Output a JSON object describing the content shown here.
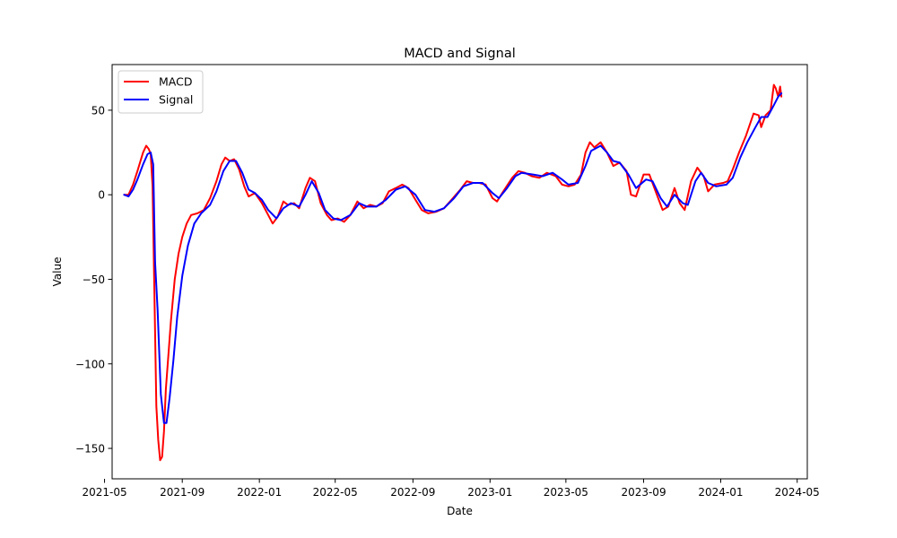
{
  "chart_data": {
    "type": "line",
    "title": "MACD and Signal",
    "xlabel": "Date",
    "ylabel": "Value",
    "xlim": [
      "2021-05-13",
      "2024-05-17"
    ],
    "ylim": [
      -168,
      77
    ],
    "x_ticks": [
      "2021-05",
      "2021-09",
      "2022-01",
      "2022-05",
      "2022-09",
      "2023-01",
      "2023-05",
      "2023-09",
      "2024-01",
      "2024-05"
    ],
    "y_ticks": [
      -150,
      -100,
      -50,
      0,
      50
    ],
    "y_tick_labels": [
      "−150",
      "−100",
      "−50",
      "0",
      "50"
    ],
    "legend": {
      "position": "upper-left",
      "entries": [
        "MACD",
        "Signal"
      ]
    },
    "grid": false,
    "series": [
      {
        "name": "MACD",
        "color": "#ff0000",
        "points": [
          [
            "2021-06-01",
            0
          ],
          [
            "2021-06-08",
            0
          ],
          [
            "2021-06-15",
            6
          ],
          [
            "2021-06-22",
            14
          ],
          [
            "2021-07-01",
            25
          ],
          [
            "2021-07-06",
            29
          ],
          [
            "2021-07-10",
            27
          ],
          [
            "2021-07-13",
            24
          ],
          [
            "2021-07-16",
            5
          ],
          [
            "2021-07-19",
            -60
          ],
          [
            "2021-07-22",
            -125
          ],
          [
            "2021-07-25",
            -145
          ],
          [
            "2021-07-28",
            -157
          ],
          [
            "2021-07-31",
            -155
          ],
          [
            "2021-08-03",
            -140
          ],
          [
            "2021-08-06",
            -115
          ],
          [
            "2021-08-10",
            -95
          ],
          [
            "2021-08-14",
            -75
          ],
          [
            "2021-08-20",
            -50
          ],
          [
            "2021-08-26",
            -35
          ],
          [
            "2021-09-01",
            -25
          ],
          [
            "2021-09-08",
            -17
          ],
          [
            "2021-09-15",
            -12
          ],
          [
            "2021-09-25",
            -11
          ],
          [
            "2021-10-05",
            -9
          ],
          [
            "2021-10-15",
            -2
          ],
          [
            "2021-10-25",
            8
          ],
          [
            "2021-11-02",
            18
          ],
          [
            "2021-11-08",
            22
          ],
          [
            "2021-11-15",
            20
          ],
          [
            "2021-11-22",
            21
          ],
          [
            "2021-11-30",
            15
          ],
          [
            "2021-12-08",
            5
          ],
          [
            "2021-12-15",
            -1
          ],
          [
            "2021-12-25",
            1
          ],
          [
            "2022-01-05",
            -5
          ],
          [
            "2022-01-15",
            -12
          ],
          [
            "2022-01-22",
            -17
          ],
          [
            "2022-01-30",
            -13
          ],
          [
            "2022-02-08",
            -4
          ],
          [
            "2022-02-15",
            -6
          ],
          [
            "2022-02-25",
            -5
          ],
          [
            "2022-03-05",
            -8
          ],
          [
            "2022-03-15",
            4
          ],
          [
            "2022-03-22",
            10
          ],
          [
            "2022-03-30",
            8
          ],
          [
            "2022-04-08",
            -5
          ],
          [
            "2022-04-18",
            -12
          ],
          [
            "2022-04-25",
            -15
          ],
          [
            "2022-05-05",
            -14
          ],
          [
            "2022-05-15",
            -16
          ],
          [
            "2022-05-25",
            -12
          ],
          [
            "2022-06-05",
            -4
          ],
          [
            "2022-06-15",
            -8
          ],
          [
            "2022-06-25",
            -6
          ],
          [
            "2022-07-05",
            -7
          ],
          [
            "2022-07-15",
            -5
          ],
          [
            "2022-07-25",
            2
          ],
          [
            "2022-08-05",
            4
          ],
          [
            "2022-08-15",
            6
          ],
          [
            "2022-08-25",
            4
          ],
          [
            "2022-09-05",
            -3
          ],
          [
            "2022-09-15",
            -9
          ],
          [
            "2022-09-25",
            -11
          ],
          [
            "2022-10-08",
            -10
          ],
          [
            "2022-10-20",
            -8
          ],
          [
            "2022-11-01",
            -3
          ],
          [
            "2022-11-15",
            3
          ],
          [
            "2022-11-25",
            8
          ],
          [
            "2022-12-05",
            7
          ],
          [
            "2022-12-15",
            7
          ],
          [
            "2022-12-25",
            6
          ],
          [
            "2023-01-05",
            -2
          ],
          [
            "2023-01-12",
            -4
          ],
          [
            "2023-01-22",
            2
          ],
          [
            "2023-02-05",
            10
          ],
          [
            "2023-02-15",
            14
          ],
          [
            "2023-02-25",
            13
          ],
          [
            "2023-03-08",
            11
          ],
          [
            "2023-03-20",
            10
          ],
          [
            "2023-04-01",
            13
          ],
          [
            "2023-04-15",
            11
          ],
          [
            "2023-04-25",
            6
          ],
          [
            "2023-05-05",
            5
          ],
          [
            "2023-05-15",
            6
          ],
          [
            "2023-05-25",
            12
          ],
          [
            "2023-06-01",
            25
          ],
          [
            "2023-06-08",
            31
          ],
          [
            "2023-06-15",
            28
          ],
          [
            "2023-06-25",
            31
          ],
          [
            "2023-07-05",
            25
          ],
          [
            "2023-07-15",
            17
          ],
          [
            "2023-07-25",
            19
          ],
          [
            "2023-08-05",
            14
          ],
          [
            "2023-08-12",
            0
          ],
          [
            "2023-08-20",
            -1
          ],
          [
            "2023-09-01",
            12
          ],
          [
            "2023-09-10",
            12
          ],
          [
            "2023-09-20",
            2
          ],
          [
            "2023-10-01",
            -9
          ],
          [
            "2023-10-10",
            -7
          ],
          [
            "2023-10-20",
            4
          ],
          [
            "2023-10-28",
            -5
          ],
          [
            "2023-11-05",
            -9
          ],
          [
            "2023-11-15",
            8
          ],
          [
            "2023-11-25",
            16
          ],
          [
            "2023-12-05",
            11
          ],
          [
            "2023-12-12",
            2
          ],
          [
            "2023-12-22",
            6
          ],
          [
            "2024-01-05",
            7
          ],
          [
            "2024-01-12",
            8
          ],
          [
            "2024-01-20",
            15
          ],
          [
            "2024-01-30",
            25
          ],
          [
            "2024-02-10",
            35
          ],
          [
            "2024-02-22",
            48
          ],
          [
            "2024-03-01",
            47
          ],
          [
            "2024-03-05",
            40
          ],
          [
            "2024-03-12",
            47
          ],
          [
            "2024-03-20",
            50
          ],
          [
            "2024-03-25",
            65
          ],
          [
            "2024-03-28",
            63
          ],
          [
            "2024-04-01",
            58
          ],
          [
            "2024-04-04",
            64
          ],
          [
            "2024-04-06",
            58
          ]
        ]
      },
      {
        "name": "Signal",
        "color": "#0000ff",
        "points": [
          [
            "2021-06-01",
            0
          ],
          [
            "2021-06-08",
            -1
          ],
          [
            "2021-06-15",
            3
          ],
          [
            "2021-06-22",
            9
          ],
          [
            "2021-07-01",
            18
          ],
          [
            "2021-07-08",
            24
          ],
          [
            "2021-07-13",
            25
          ],
          [
            "2021-07-17",
            18
          ],
          [
            "2021-07-20",
            -40
          ],
          [
            "2021-07-24",
            -68
          ],
          [
            "2021-07-29",
            -118
          ],
          [
            "2021-08-03",
            -135
          ],
          [
            "2021-08-07",
            -135
          ],
          [
            "2021-08-12",
            -120
          ],
          [
            "2021-08-18",
            -98
          ],
          [
            "2021-08-24",
            -72
          ],
          [
            "2021-09-01",
            -48
          ],
          [
            "2021-09-10",
            -30
          ],
          [
            "2021-09-20",
            -17
          ],
          [
            "2021-10-01",
            -11
          ],
          [
            "2021-10-15",
            -6
          ],
          [
            "2021-10-25",
            2
          ],
          [
            "2021-11-05",
            14
          ],
          [
            "2021-11-15",
            20
          ],
          [
            "2021-11-25",
            20
          ],
          [
            "2021-12-05",
            13
          ],
          [
            "2021-12-15",
            3
          ],
          [
            "2021-12-25",
            1
          ],
          [
            "2022-01-05",
            -3
          ],
          [
            "2022-01-15",
            -9
          ],
          [
            "2022-01-28",
            -14
          ],
          [
            "2022-02-08",
            -8
          ],
          [
            "2022-02-20",
            -5
          ],
          [
            "2022-03-05",
            -7
          ],
          [
            "2022-03-15",
            0
          ],
          [
            "2022-03-25",
            8
          ],
          [
            "2022-04-05",
            1
          ],
          [
            "2022-04-15",
            -9
          ],
          [
            "2022-04-28",
            -14
          ],
          [
            "2022-05-10",
            -15
          ],
          [
            "2022-05-25",
            -12
          ],
          [
            "2022-06-08",
            -5
          ],
          [
            "2022-06-20",
            -7
          ],
          [
            "2022-07-05",
            -7
          ],
          [
            "2022-07-20",
            -3
          ],
          [
            "2022-08-05",
            3
          ],
          [
            "2022-08-20",
            5
          ],
          [
            "2022-09-05",
            0
          ],
          [
            "2022-09-20",
            -9
          ],
          [
            "2022-10-05",
            -10
          ],
          [
            "2022-10-20",
            -8
          ],
          [
            "2022-11-05",
            -2
          ],
          [
            "2022-11-20",
            5
          ],
          [
            "2022-12-05",
            7
          ],
          [
            "2022-12-20",
            7
          ],
          [
            "2023-01-05",
            1
          ],
          [
            "2023-01-15",
            -2
          ],
          [
            "2023-01-28",
            4
          ],
          [
            "2023-02-10",
            11
          ],
          [
            "2023-02-20",
            13
          ],
          [
            "2023-03-10",
            12
          ],
          [
            "2023-03-25",
            11
          ],
          [
            "2023-04-10",
            13
          ],
          [
            "2023-04-25",
            9
          ],
          [
            "2023-05-05",
            6
          ],
          [
            "2023-05-20",
            7
          ],
          [
            "2023-06-01",
            17
          ],
          [
            "2023-06-10",
            26
          ],
          [
            "2023-06-25",
            29
          ],
          [
            "2023-07-05",
            25
          ],
          [
            "2023-07-15",
            20
          ],
          [
            "2023-07-25",
            19
          ],
          [
            "2023-08-08",
            12
          ],
          [
            "2023-08-20",
            4
          ],
          [
            "2023-09-05",
            9
          ],
          [
            "2023-09-15",
            8
          ],
          [
            "2023-09-28",
            -2
          ],
          [
            "2023-10-08",
            -7
          ],
          [
            "2023-10-20",
            0
          ],
          [
            "2023-11-02",
            -5
          ],
          [
            "2023-11-10",
            -6
          ],
          [
            "2023-11-22",
            8
          ],
          [
            "2023-12-01",
            13
          ],
          [
            "2023-12-12",
            7
          ],
          [
            "2023-12-25",
            5
          ],
          [
            "2024-01-10",
            6
          ],
          [
            "2024-01-20",
            10
          ],
          [
            "2024-02-01",
            22
          ],
          [
            "2024-02-12",
            31
          ],
          [
            "2024-02-25",
            40
          ],
          [
            "2024-03-05",
            46
          ],
          [
            "2024-03-15",
            46
          ],
          [
            "2024-03-25",
            53
          ],
          [
            "2024-04-01",
            58
          ],
          [
            "2024-04-06",
            60
          ]
        ]
      }
    ]
  }
}
